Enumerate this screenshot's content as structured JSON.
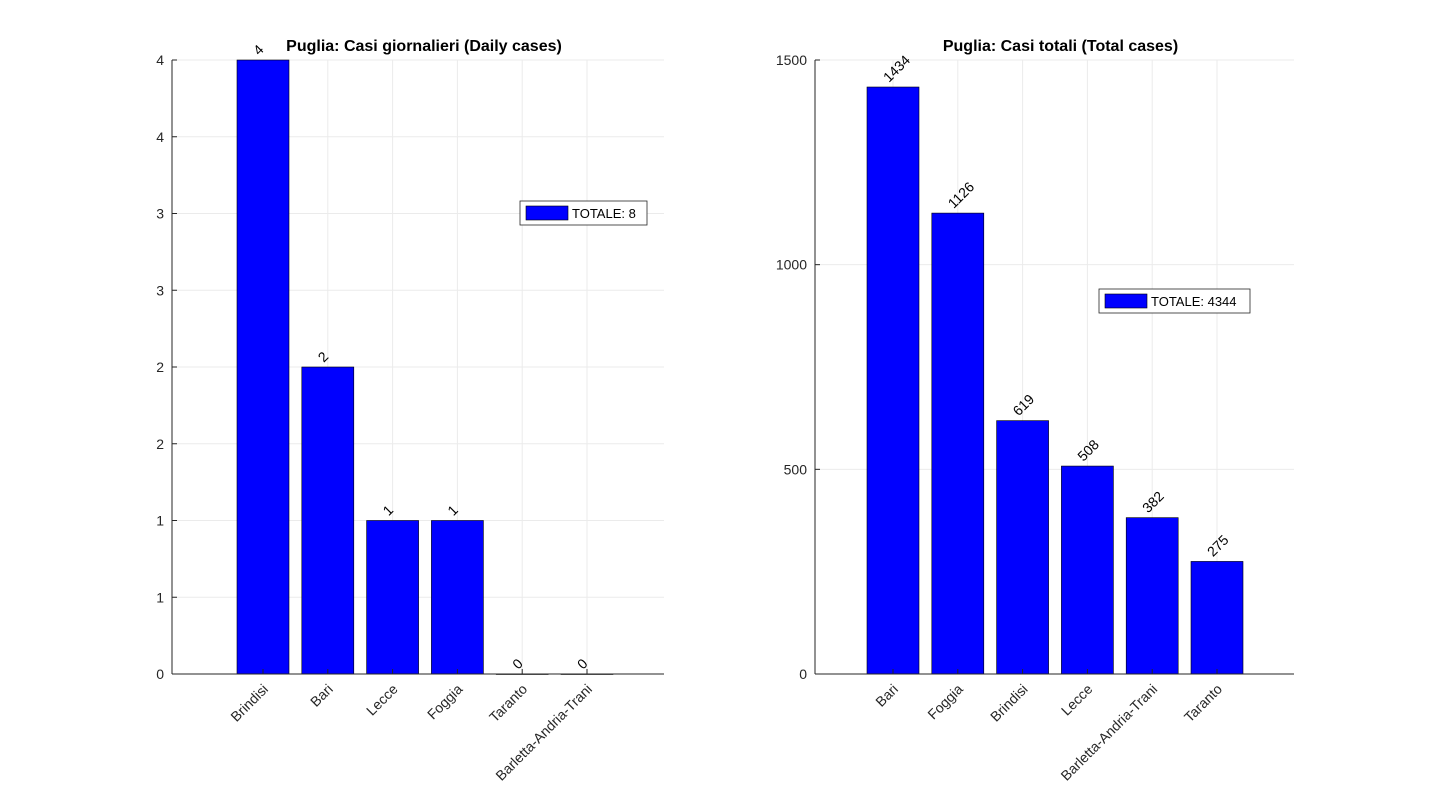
{
  "colors": {
    "bar": "#0000ff",
    "bar_edge": "#000000",
    "grid": "#ebebeb",
    "axis": "#262626"
  },
  "chart_data": [
    {
      "type": "bar",
      "title": "Puglia: Casi giornalieri (Daily cases)",
      "categories": [
        "Brindisi",
        "Bari",
        "Lecce",
        "Foggia",
        "Taranto",
        "Barletta-Andria-Trani"
      ],
      "values": [
        4,
        2,
        1,
        1,
        0,
        0
      ],
      "data_labels": [
        "4",
        "2",
        "1",
        "1",
        "0",
        "0"
      ],
      "ylim": [
        0,
        4
      ],
      "yticks": [
        0,
        0.5,
        1,
        1.5,
        2,
        2.5,
        3,
        3.5,
        4
      ],
      "ytick_labels": [
        "0",
        "1",
        "1",
        "2",
        "2",
        "3",
        "3",
        "4",
        "4"
      ],
      "grid": true,
      "legend": {
        "label": "TOTALE: 8",
        "placement": "right"
      }
    },
    {
      "type": "bar",
      "title": "Puglia: Casi totali (Total cases)",
      "categories": [
        "Bari",
        "Foggia",
        "Brindisi",
        "Lecce",
        "Barletta-Andria-Trani",
        "Taranto"
      ],
      "values": [
        1434,
        1126,
        619,
        508,
        382,
        275
      ],
      "data_labels": [
        "1434",
        "1126",
        "619",
        "508",
        "382",
        "275"
      ],
      "ylim": [
        0,
        1500
      ],
      "yticks": [
        0,
        500,
        1000,
        1500
      ],
      "ytick_labels": [
        "0",
        "500",
        "1000",
        "1500"
      ],
      "grid": true,
      "legend": {
        "label": "TOTALE: 4344",
        "placement": "right"
      }
    }
  ]
}
